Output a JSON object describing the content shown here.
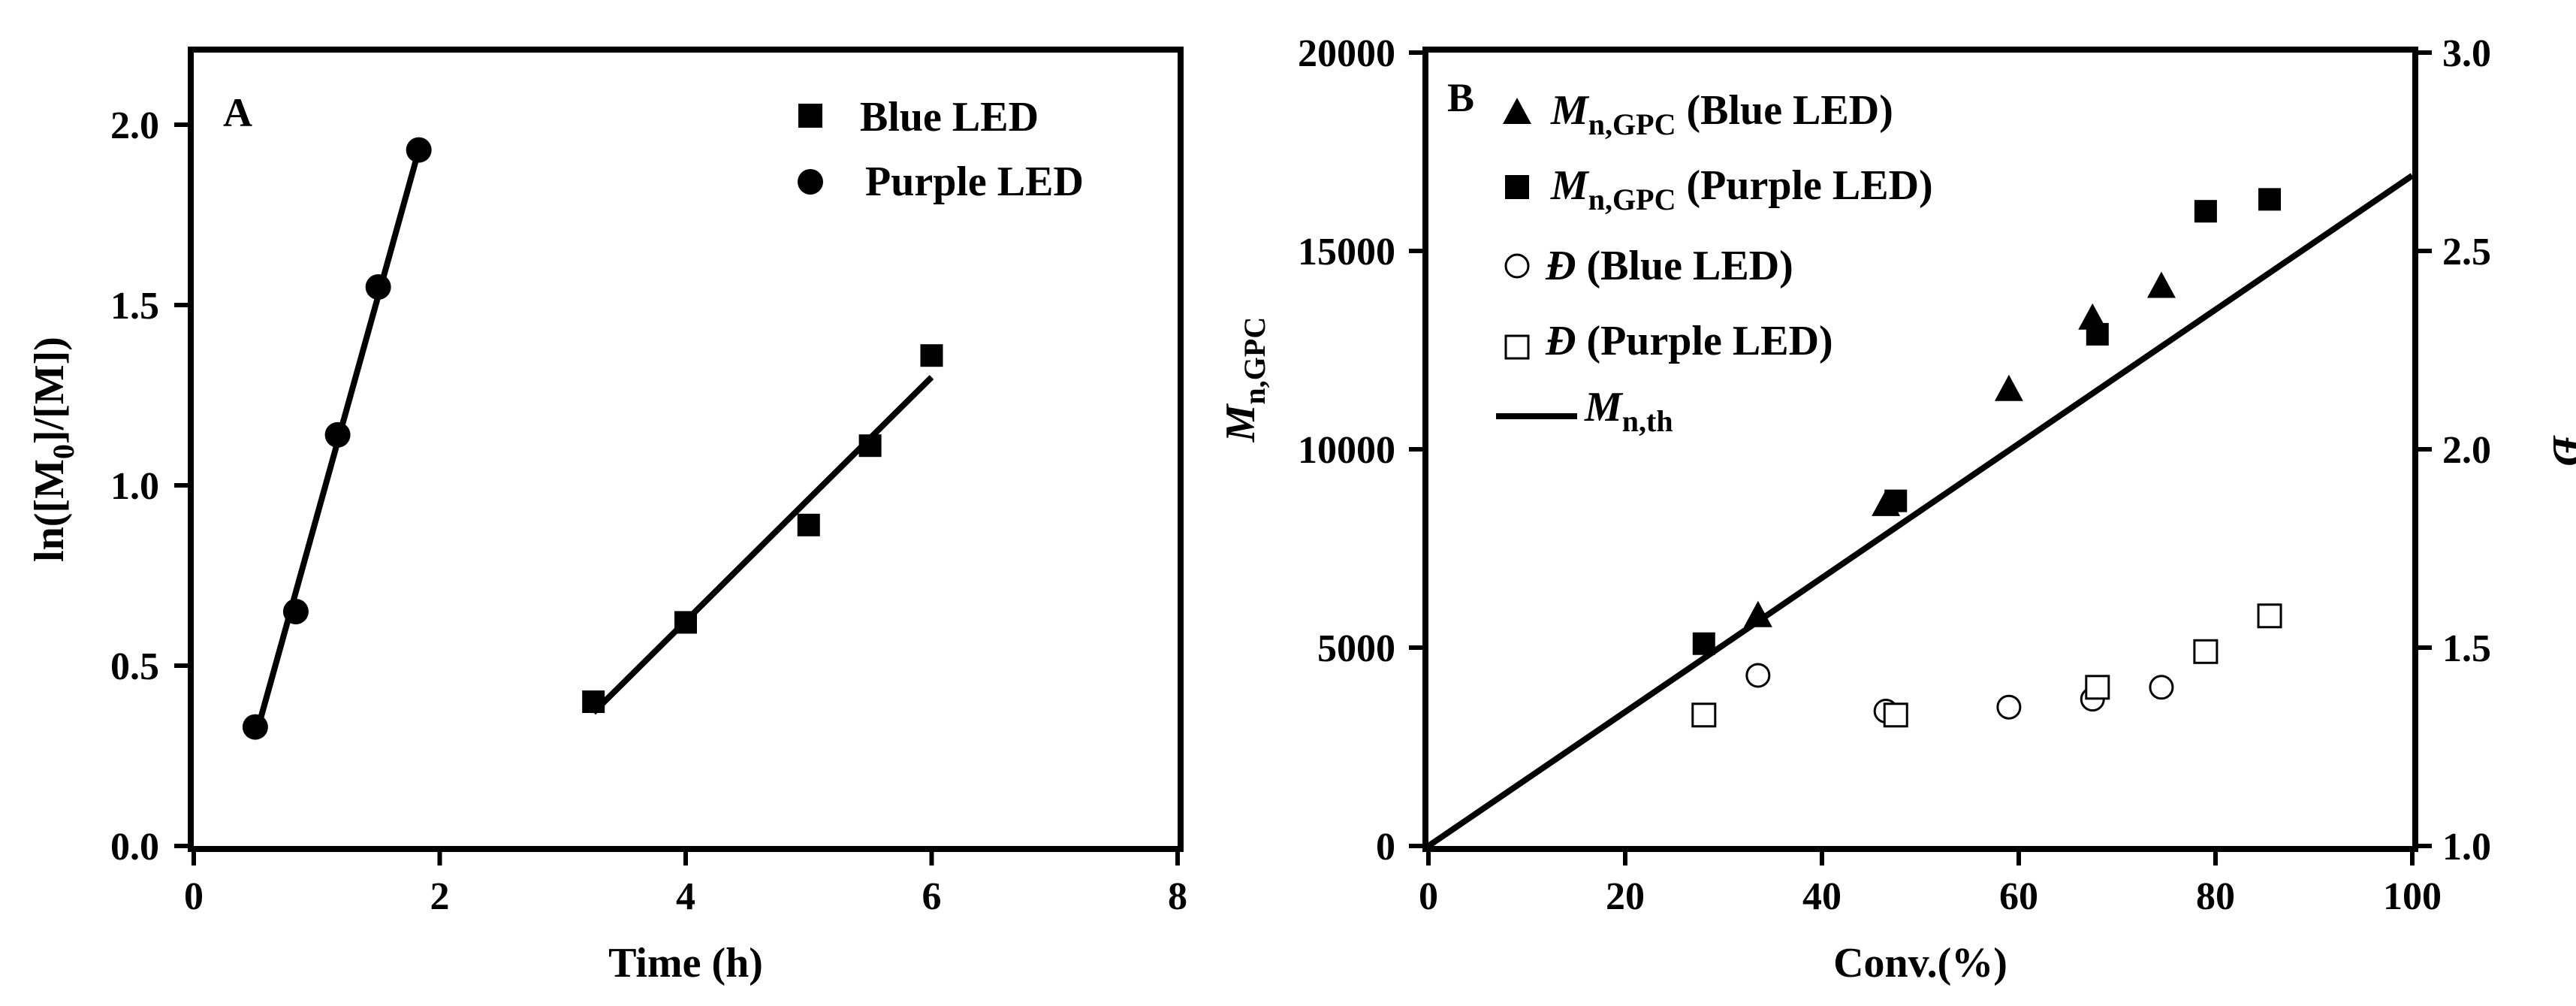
{
  "chart_data": [
    {
      "type": "scatter",
      "panel_label": "A",
      "xlabel": "Time (h)",
      "ylabel": "ln([M0]/[M])",
      "xlim": [
        0,
        8
      ],
      "ylim": [
        0,
        2.2
      ],
      "xticks": [
        "0",
        "2",
        "4",
        "6",
        "8"
      ],
      "yticks": [
        "0.0",
        "0.5",
        "1.0",
        "1.5",
        "2.0"
      ],
      "legend_position": "top-right",
      "series": [
        {
          "name": "Blue LED",
          "marker": "filled-square",
          "x": [
            3.25,
            4.0,
            5.0,
            5.5,
            6.0
          ],
          "y": [
            0.4,
            0.62,
            0.89,
            1.11,
            1.36
          ],
          "fit": [
            [
              3.25,
              0.37
            ],
            [
              6.0,
              1.3
            ]
          ]
        },
        {
          "name": "Purple LED",
          "marker": "filled-circle",
          "x": [
            0.5,
            0.83,
            1.17,
            1.5,
            1.83
          ],
          "y": [
            0.33,
            0.65,
            1.14,
            1.55,
            1.93
          ],
          "fit": [
            [
              0.5,
              0.3
            ],
            [
              1.83,
              1.93
            ]
          ]
        }
      ]
    },
    {
      "type": "scatter",
      "panel_label": "B",
      "xlabel": "Conv.(%)",
      "ylabel": "M",
      "ylabel_sub": "n,GPC",
      "y2label": "Đ",
      "xlim": [
        0,
        100
      ],
      "ylim": [
        0,
        20000
      ],
      "y2lim": [
        1.0,
        3.0
      ],
      "xticks": [
        "0",
        "20",
        "40",
        "60",
        "80",
        "100"
      ],
      "yticks": [
        "0",
        "5000",
        "10000",
        "15000",
        "20000"
      ],
      "y2ticks": [
        "1.0",
        "1.5",
        "2.0",
        "2.5",
        "3.0"
      ],
      "legend_position": "top-left",
      "series": [
        {
          "name": "M",
          "name_sub": "n,GPC",
          "name_suffix": " (Blue LED)",
          "marker": "filled-triangle",
          "axis": "left",
          "x": [
            33.5,
            46.5,
            59,
            67.5,
            74.5
          ],
          "y": [
            5800,
            8600,
            11500,
            13300,
            14100
          ]
        },
        {
          "name": "M",
          "name_sub": "n,GPC",
          "name_suffix": " (Purple LED)",
          "marker": "filled-square",
          "axis": "left",
          "x": [
            28,
            47.5,
            68,
            79,
            85.5
          ],
          "y": [
            5100,
            8700,
            12900,
            16000,
            16300
          ]
        },
        {
          "name": "Đ",
          "name_suffix": " (Blue LED)",
          "marker": "open-circle",
          "axis": "right",
          "x": [
            33.5,
            46.5,
            59,
            67.5,
            74.5
          ],
          "y": [
            1.43,
            1.34,
            1.35,
            1.37,
            1.4
          ]
        },
        {
          "name": "Đ",
          "name_suffix": " (Purple LED)",
          "marker": "open-square",
          "axis": "right",
          "x": [
            28,
            47.5,
            68,
            79,
            85.5
          ],
          "y": [
            1.33,
            1.33,
            1.4,
            1.49,
            1.58
          ]
        },
        {
          "name": "M",
          "name_sub": "n,th",
          "marker": "line",
          "axis": "left",
          "x": [
            0,
            100
          ],
          "y": [
            0,
            16900
          ]
        }
      ]
    }
  ]
}
